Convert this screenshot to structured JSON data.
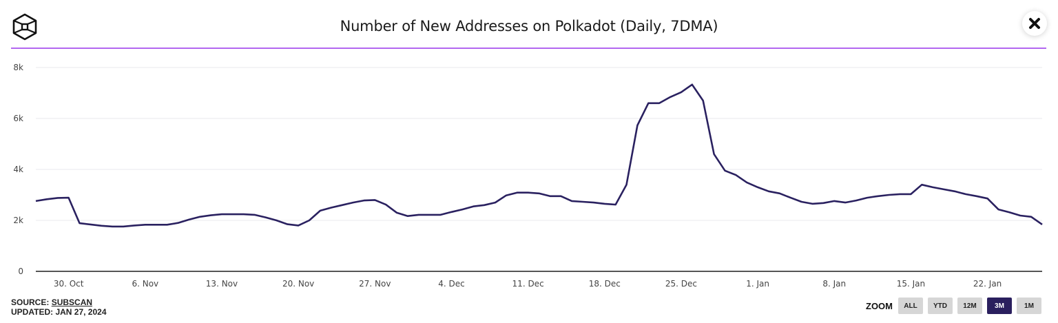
{
  "header": {
    "logo_icon": "cube-logo-icon",
    "close_icon": "close-icon"
  },
  "footer": {
    "source_prefix": "SOURCE:",
    "source_link": "SUBSCAN",
    "updated": "UPDATED: JAN 27, 2024"
  },
  "zoom": {
    "label": "ZOOM",
    "options": [
      "ALL",
      "YTD",
      "12M",
      "3M",
      "1M"
    ],
    "active": "3M"
  },
  "colors": {
    "line": "#2a2160",
    "accent_divider": "#b266f0",
    "active_zoom": "#2a1f5e",
    "grid": "#e8e8ee",
    "axis": "#555555"
  },
  "chart_data": {
    "type": "line",
    "title": "Number of New Addresses on Polkadot (Daily, 7DMA)",
    "xlabel": "",
    "ylabel": "",
    "ylim": [
      0,
      8000
    ],
    "yticks": [
      0,
      2000,
      4000,
      6000,
      8000
    ],
    "ytick_labels": [
      "0",
      "2k",
      "4k",
      "6k",
      "8k"
    ],
    "xtick_labels": [
      "30. Oct",
      "6. Nov",
      "13. Nov",
      "20. Nov",
      "27. Nov",
      "4. Dec",
      "11. Dec",
      "18. Dec",
      "25. Dec",
      "1. Jan",
      "8. Jan",
      "15. Jan",
      "22. Jan"
    ],
    "xtick_day_index": [
      3,
      10,
      17,
      24,
      31,
      38,
      45,
      52,
      59,
      66,
      73,
      80,
      87
    ],
    "x_start": "2023-10-27",
    "x_end": "2024-01-27",
    "grid": true,
    "legend": "none",
    "series": [
      {
        "name": "New Addresses (7DMA)",
        "values": [
          2760,
          2830,
          2880,
          2890,
          1890,
          1840,
          1790,
          1760,
          1760,
          1800,
          1830,
          1830,
          1830,
          1900,
          2030,
          2140,
          2200,
          2240,
          2240,
          2240,
          2220,
          2120,
          2000,
          1850,
          1800,
          2000,
          2380,
          2500,
          2600,
          2700,
          2780,
          2800,
          2620,
          2300,
          2170,
          2220,
          2220,
          2220,
          2330,
          2430,
          2550,
          2600,
          2700,
          2980,
          3090,
          3090,
          3060,
          2950,
          2950,
          2760,
          2730,
          2700,
          2650,
          2620,
          3400,
          5730,
          6600,
          6600,
          6840,
          7030,
          7330,
          6700,
          4600,
          3950,
          3780,
          3490,
          3300,
          3140,
          3060,
          2890,
          2730,
          2650,
          2680,
          2760,
          2700,
          2780,
          2890,
          2950,
          3000,
          3030,
          3030,
          3400,
          3300,
          3220,
          3140,
          3030,
          2950,
          2860,
          2430,
          2320,
          2190,
          2140,
          1840
        ]
      }
    ]
  }
}
